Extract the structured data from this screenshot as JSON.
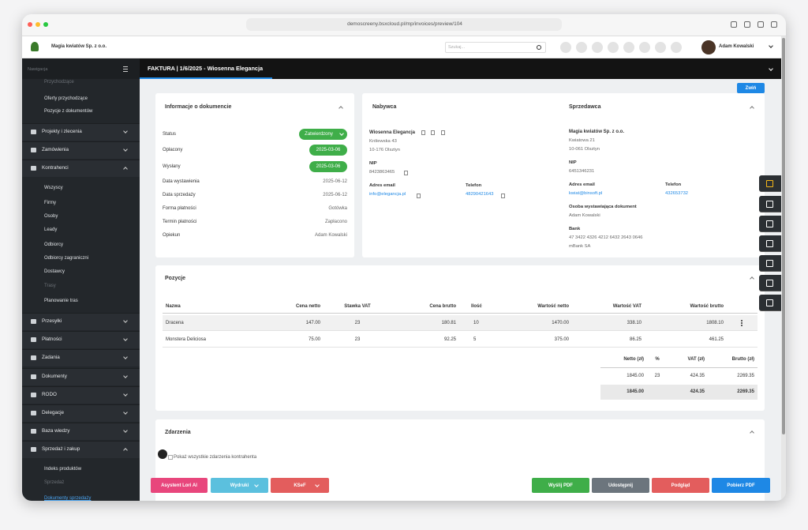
{
  "browser": {
    "url": "demoscreeny.bsxcloud.pl/mp/invoices/preview/104"
  },
  "topbar": {
    "company": "Magia kwiatów Sp. z o.o.",
    "search_placeholder": "Szukaj...",
    "user": "Adam Kowalski"
  },
  "sidebar": {
    "search_placeholder": "Nawigacja",
    "items": [
      "Przychodzące",
      "Oferty przychodzące",
      "Pozycje z dokumentów",
      "Projekty i zlecenia",
      "Zamówienia",
      "Kontrahenci",
      "Wszyscy",
      "Firmy",
      "Osoby",
      "Leady",
      "Odbiorcy",
      "Odbiorcy zagraniczni",
      "Dostawcy",
      "Trasy",
      "Planowanie tras",
      "Przesyłki",
      "Płatności",
      "Zadania",
      "Dokumenty",
      "RODO",
      "Delegacje",
      "Baza wiedzy",
      "Sprzedaż i zakup",
      "Indeks produktów",
      "Sprzedaż",
      "Dokumenty sprzedaży"
    ]
  },
  "header": {
    "title": "FAKTURA | 1/6/2025 - Wiosenna Elegancja",
    "collapse": "Zwiń"
  },
  "info": {
    "title": "Informacje o dokumencie",
    "rows": [
      [
        "Status",
        "Zatwierdzony"
      ],
      [
        "Opłacony",
        "2025-03-06"
      ],
      [
        "Wysłany",
        "2025-03-06"
      ],
      [
        "Data wystawienia",
        "2025-06-12"
      ],
      [
        "Data sprzedaży",
        "2025-06-12"
      ],
      [
        "Forma płatności",
        "Gotówka"
      ],
      [
        "Termin płatności",
        "Zapłacono"
      ],
      [
        "Opiekun",
        "Adam Kowalski"
      ]
    ]
  },
  "buyer": {
    "title": "Nabywca",
    "name": "Wiosenna Elegancja",
    "address": [
      "Królewska 43",
      "10-176 Olsztyn"
    ],
    "nip_label": "NIP",
    "nip": "8423863465",
    "email_label": "Adres email",
    "email": "info@elegancja.pl",
    "phone_label": "Telefon",
    "phone": "48290421643"
  },
  "seller": {
    "title": "Sprzedawca",
    "name": "Magia kwiatów Sp. z o.o.",
    "address": [
      "Kwiatowa 21",
      "10-061 Olsztyn"
    ],
    "nip_label": "NIP",
    "nip": "6451346231",
    "email_label": "Adres email",
    "email": "kwiat@binsoft.pl",
    "phone_label": "Telefon",
    "phone": "432653732",
    "issuer_label": "Osoba wystawiająca dokument",
    "issuer": "Adam Kowalski",
    "bank_label": "Bank",
    "bank": [
      "47 3422 4326 4212 6432 2643 0646",
      "mBank SA"
    ]
  },
  "positions": {
    "title": "Pozycje",
    "columns": [
      "Nazwa",
      "Cena netto",
      "Stawka VAT",
      "Cena brutto",
      "Ilość",
      "Wartość netto",
      "Wartość VAT",
      "Wartość brutto"
    ],
    "rows": [
      [
        "Dracena",
        "147.00",
        "23",
        "180.81",
        "10",
        "1470.00",
        "338.10",
        "1808.10"
      ],
      [
        "Monstera Deliciosa",
        "75.00",
        "23",
        "92.25",
        "5",
        "375.00",
        "86.25",
        "461.25"
      ]
    ],
    "summary": {
      "columns": [
        "Netto (zł)",
        "%",
        "VAT (zł)",
        "Brutto (zł)"
      ],
      "rows": [
        [
          "1845.00",
          "23",
          "424.35",
          "2269.35"
        ]
      ],
      "total": [
        "1845.00",
        "424.35",
        "2269.35"
      ]
    }
  },
  "events": {
    "title": "Zdarzenia",
    "checkbox": "Pokaż wszystkie zdarzenia kontrahenta"
  },
  "actions": {
    "left": [
      "Asystent Lori AI",
      "Wydruki",
      "KSeF"
    ],
    "right": [
      "Wyślij PDF",
      "Udostępnij",
      "Podgląd",
      "Pobierz PDF"
    ]
  }
}
